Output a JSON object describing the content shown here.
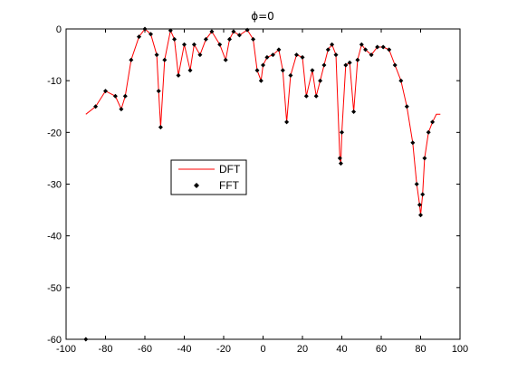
{
  "chart_data": {
    "type": "line",
    "title": "ϕ=0",
    "xlabel": "",
    "ylabel": "",
    "xlim": [
      -100,
      100
    ],
    "ylim": [
      -60,
      0
    ],
    "xticks": [
      -100,
      -80,
      -60,
      -40,
      -20,
      0,
      20,
      40,
      60,
      80,
      100
    ],
    "yticks": [
      0,
      -10,
      -20,
      -30,
      -40,
      -50,
      -60
    ],
    "xtick_labels": [
      "-100",
      "-80",
      "-60",
      "-40",
      "-20",
      "0",
      "20",
      "40",
      "60",
      "80",
      "100"
    ],
    "ytick_labels": [
      "0",
      "-10",
      "-20",
      "-30",
      "-40",
      "-50",
      "-60"
    ],
    "grid": false,
    "legend": {
      "placement": "center-left",
      "entries": [
        "DFT",
        "FFT"
      ]
    },
    "series": [
      {
        "name": "DFT",
        "style": "line",
        "color": "#ff0000",
        "x": [
          -90,
          -85,
          -80,
          -75,
          -72,
          -70,
          -67,
          -63,
          -60,
          -57,
          -54,
          -53,
          -52,
          -50,
          -47,
          -45,
          -43,
          -40,
          -37,
          -35,
          -32,
          -29,
          -26,
          -22,
          -19,
          -17,
          -15,
          -12,
          -8,
          -5,
          -3,
          -1,
          0,
          2,
          5,
          8,
          10,
          12,
          14,
          17,
          20,
          22,
          25,
          27,
          29,
          31,
          33,
          35,
          37,
          39,
          39.5,
          40,
          42,
          44,
          46,
          48,
          50,
          52,
          55,
          58,
          61,
          64,
          67,
          70,
          73,
          76,
          78,
          79.5,
          80,
          81,
          82,
          84,
          86,
          88,
          90
        ],
        "y": [
          -16.5,
          -15,
          -12,
          -13,
          -15.5,
          -13,
          -6,
          -1.5,
          0,
          -1,
          -5,
          -12,
          -19,
          -6,
          -0.3,
          -2,
          -9,
          -3,
          -8,
          -3,
          -5,
          -2,
          -0.5,
          -3,
          -6,
          -2,
          -0.5,
          -1.2,
          -0.2,
          -2,
          -8,
          -10,
          -7,
          -5.5,
          -5,
          -4,
          -8,
          -18,
          -9,
          -5,
          -5.5,
          -13,
          -8,
          -13,
          -10,
          -7,
          -4,
          -3,
          -5,
          -25,
          -26,
          -20,
          -7,
          -6.5,
          -16,
          -6,
          -3,
          -4,
          -5,
          -3.5,
          -3.5,
          -4,
          -7,
          -10,
          -15,
          -22,
          -30,
          -34,
          -36,
          -32,
          -25,
          -20,
          -18,
          -16.5,
          -16.5
        ]
      },
      {
        "name": "FFT",
        "style": "markers",
        "color": "#000000",
        "x": [
          -90,
          -85,
          -80,
          -75,
          -72,
          -70,
          -67,
          -63,
          -60,
          -57,
          -54,
          -53,
          -52,
          -50,
          -47,
          -45,
          -43,
          -40,
          -37,
          -35,
          -32,
          -29,
          -26,
          -22,
          -19,
          -17,
          -15,
          -12,
          -8,
          -5,
          -3,
          -1,
          0,
          2,
          5,
          8,
          10,
          12,
          14,
          17,
          20,
          22,
          25,
          27,
          29,
          31,
          33,
          35,
          37,
          39,
          39.5,
          40,
          42,
          44,
          46,
          48,
          50,
          52,
          55,
          58,
          61,
          64,
          67,
          70,
          73,
          76,
          78,
          79.5,
          80,
          81,
          82,
          84,
          86
        ],
        "y": [
          -60,
          -15,
          -12,
          -13,
          -15.5,
          -13,
          -6,
          -1.5,
          0,
          -1,
          -5,
          -12,
          -19,
          -6,
          -0.3,
          -2,
          -9,
          -3,
          -8,
          -3,
          -5,
          -2,
          -0.5,
          -3,
          -6,
          -2,
          -0.5,
          -1.2,
          -0.2,
          -2,
          -8,
          -10,
          -7,
          -5.5,
          -5,
          -4,
          -8,
          -18,
          -9,
          -5,
          -5.5,
          -13,
          -8,
          -13,
          -10,
          -7,
          -4,
          -3,
          -5,
          -25,
          -26,
          -20,
          -7,
          -6.5,
          -16,
          -6,
          -3,
          -4,
          -5,
          -3.5,
          -3.5,
          -4,
          -7,
          -10,
          -15,
          -22,
          -30,
          -34,
          -36,
          -32,
          -25,
          -20,
          -18
        ]
      }
    ]
  }
}
